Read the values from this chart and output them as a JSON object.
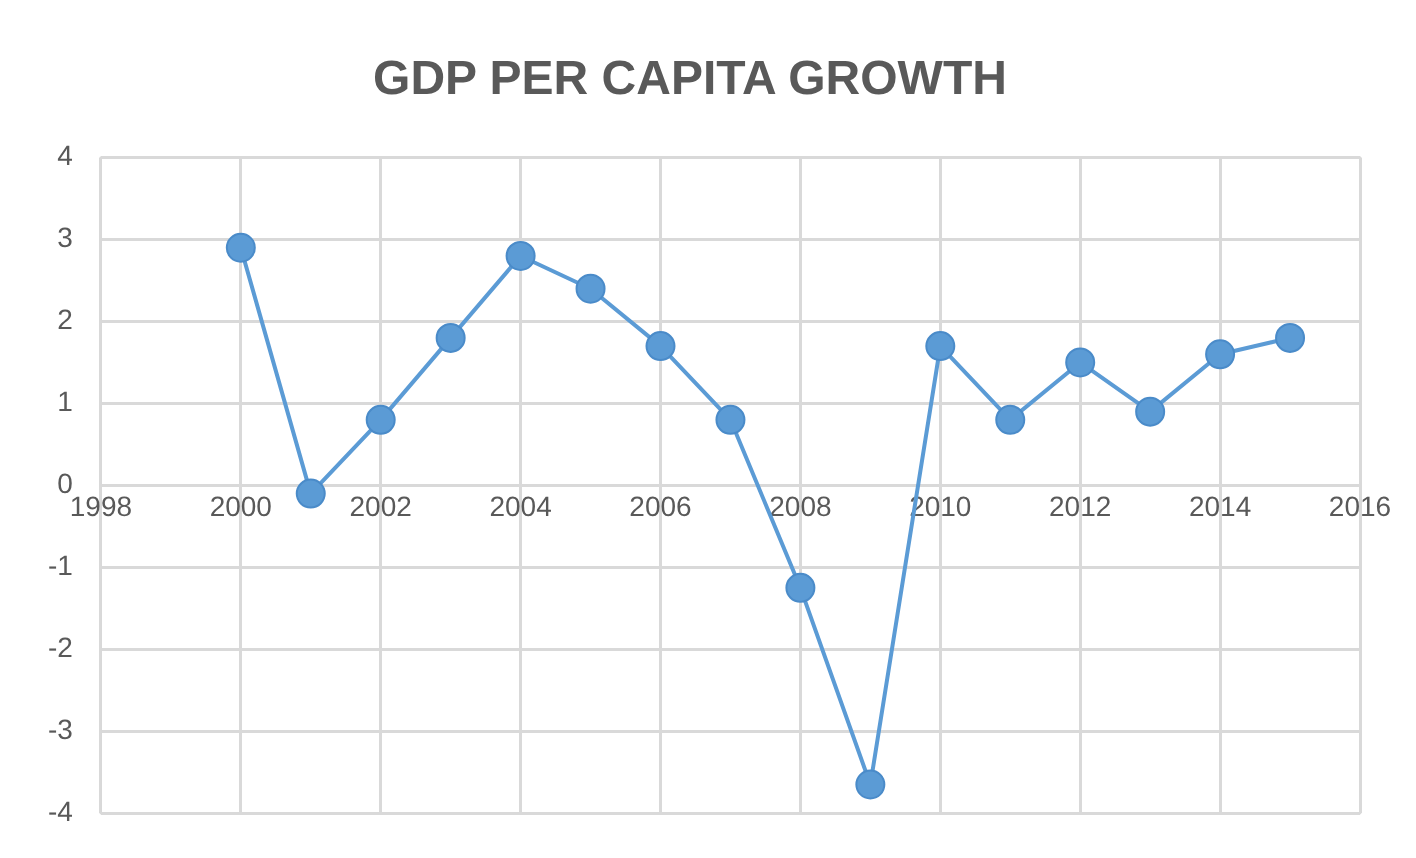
{
  "chart_data": {
    "type": "line",
    "title": "GDP PER CAPITA GROWTH",
    "x": [
      2000,
      2001,
      2002,
      2003,
      2004,
      2005,
      2006,
      2007,
      2008,
      2009,
      2010,
      2011,
      2012,
      2013,
      2014,
      2015
    ],
    "series": [
      {
        "color": "#5b9bd5",
        "values": [
          2.9,
          -0.1,
          0.8,
          1.8,
          2.8,
          2.4,
          1.7,
          0.8,
          -1.25,
          -3.65,
          1.7,
          0.8,
          1.5,
          0.9,
          1.6,
          1.8
        ]
      }
    ],
    "xlim": [
      1998,
      2016
    ],
    "xticks": [
      1998,
      2000,
      2002,
      2004,
      2006,
      2008,
      2010,
      2012,
      2014,
      2016
    ],
    "ylim": [
      -4,
      4
    ],
    "yticks": [
      -4,
      -3,
      -2,
      -1,
      0,
      1,
      2,
      3,
      4
    ],
    "grid": true,
    "marker": "circle",
    "line_style": "solid",
    "legend": false
  }
}
